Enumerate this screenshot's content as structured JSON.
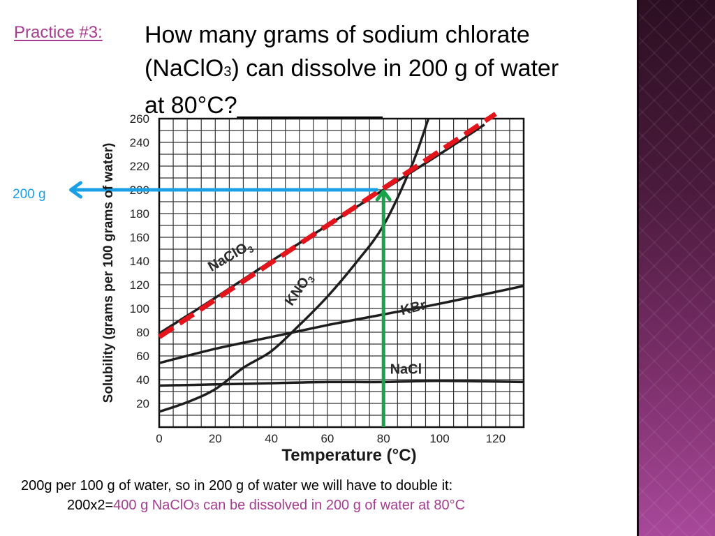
{
  "slide": {
    "practice_label": "Practice #3:",
    "question": {
      "line1": "How many grams of sodium chlorate",
      "line2_prefix": "(NaClO",
      "line2_sub": "3",
      "line2_suffix": ") can dissolve in 200 g of water",
      "line3": "at 80°C?___________"
    },
    "answer": {
      "line1": "200g per 100 g of water, so in 200 g of water we will have to double it:",
      "line2_prefix": "200x2=",
      "line2_accent1": "400 g NaClO",
      "line2_sub": "3",
      "line2_accent2": " can be dissolved in 200 g of water at 80°C"
    },
    "arrow_label": "200 g",
    "colors": {
      "accent": "#a63c90",
      "blue_arrow": "#1aa0e6",
      "green_arrow": "#16a34a",
      "red_dashed": "#e3141b",
      "side_panel": "#6b2a5e"
    }
  },
  "chart_data": {
    "type": "line",
    "xlabel": "Temperature (°C)",
    "ylabel": "Solubility (grams per 100 grams of water)",
    "xlim": [
      0,
      130
    ],
    "ylim": [
      0,
      260
    ],
    "x_ticks": [
      0,
      20,
      40,
      60,
      80,
      100,
      120
    ],
    "y_ticks": [
      20,
      40,
      60,
      80,
      100,
      120,
      140,
      160,
      180,
      200,
      220,
      240,
      260
    ],
    "grid": true,
    "series": [
      {
        "name": "NaClO3",
        "x": [
          0,
          20,
          40,
          60,
          80,
          100,
          116
        ],
        "y": [
          79,
          109,
          140,
          170,
          200,
          230,
          255
        ]
      },
      {
        "name": "KNO3",
        "x": [
          0,
          10,
          20,
          30,
          40,
          50,
          60,
          70,
          80,
          90,
          96
        ],
        "y": [
          13,
          21,
          32,
          50,
          64,
          86,
          110,
          138,
          170,
          220,
          260
        ]
      },
      {
        "name": "KBr",
        "x": [
          0,
          20,
          40,
          60,
          80,
          100,
          130
        ],
        "y": [
          54,
          66,
          76,
          86,
          95,
          104,
          119
        ]
      },
      {
        "name": "NaCl",
        "x": [
          0,
          20,
          40,
          60,
          80,
          100,
          130
        ],
        "y": [
          35,
          36,
          37,
          38,
          38,
          39,
          38
        ]
      }
    ],
    "overlays": {
      "red_dashed_line": {
        "x": [
          0,
          120
        ],
        "y": [
          76,
          264
        ]
      },
      "green_arrow": {
        "x": 80,
        "y_from": 0,
        "y_to": 200
      },
      "blue_arrow": {
        "y": 200,
        "x_from": 78,
        "x_to": -32
      }
    }
  }
}
